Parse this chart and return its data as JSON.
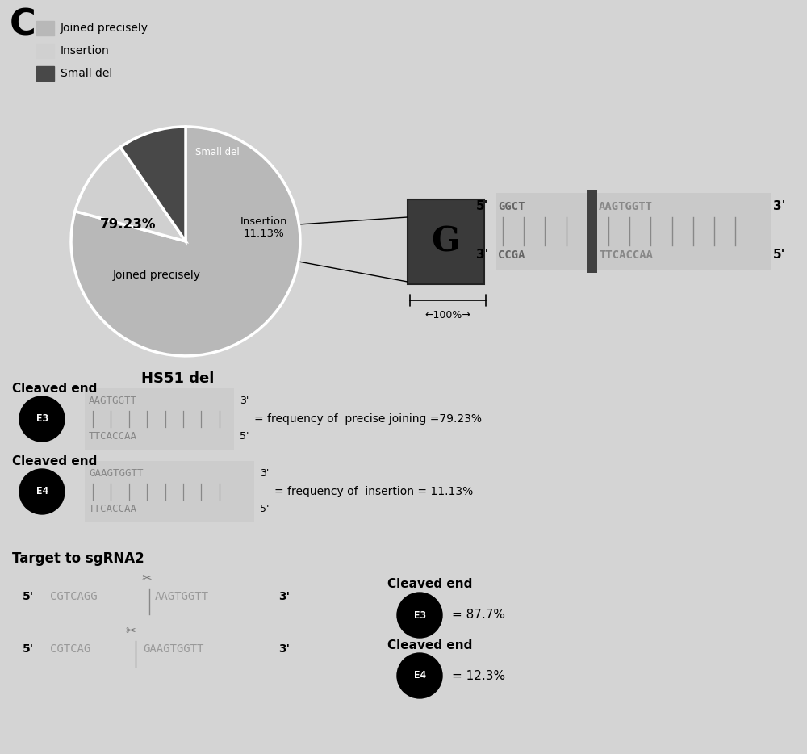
{
  "background_color": "#d4d4d4",
  "panel_label": "C",
  "pie_values": [
    79.23,
    11.13,
    9.64
  ],
  "pie_colors": [
    "#b8b8b8",
    "#d0d0d0",
    "#484848"
  ],
  "pie_title": "HS51 del",
  "legend_labels": [
    "Joined precisely",
    "Insertion",
    "Small del"
  ],
  "legend_colors": [
    "#b8b8b8",
    "#d0d0d0",
    "#484848"
  ],
  "G_box_color": "#3a3a3a",
  "G_text": "G",
  "scale_label": "←100%→",
  "cleaved_e3_label": "= frequency of  precise joining =79.23%",
  "cleaved_e4_label": "= frequency of  insertion = 11.13%",
  "target_label": "Target to sgRNA2",
  "cleaved_end_e3_pct": "= 87.7%",
  "cleaved_end_e4_pct": "= 12.3%"
}
